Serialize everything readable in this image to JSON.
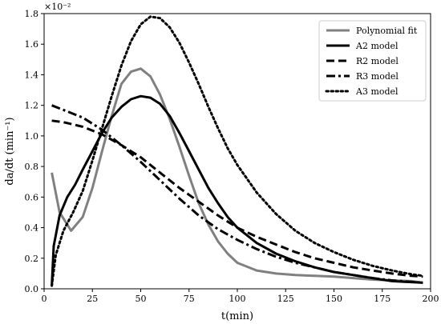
{
  "chart_data": {
    "type": "line",
    "xlabel": "t(min)",
    "ylabel": "da/dt (min⁻¹)",
    "scale_note": "×10⁻²",
    "xlim": [
      0,
      200
    ],
    "ylim": [
      0,
      1.8
    ],
    "x_ticks": [
      "0",
      "25",
      "50",
      "75",
      "100",
      "125",
      "150",
      "175",
      "200"
    ],
    "y_ticks": [
      "0.0",
      "0.2",
      "0.4",
      "0.6",
      "0.8",
      "1.0",
      "1.2",
      "1.4",
      "1.6",
      "1.8"
    ],
    "legend_position": "top-right",
    "grid": false,
    "series": [
      {
        "name": "Polynomial fit",
        "color": "#808080",
        "style": "solid",
        "points": [
          [
            4,
            0.76
          ],
          [
            8,
            0.5
          ],
          [
            14,
            0.38
          ],
          [
            20,
            0.47
          ],
          [
            25,
            0.66
          ],
          [
            30,
            0.9
          ],
          [
            35,
            1.13
          ],
          [
            40,
            1.34
          ],
          [
            45,
            1.42
          ],
          [
            50,
            1.44
          ],
          [
            55,
            1.39
          ],
          [
            60,
            1.27
          ],
          [
            65,
            1.11
          ],
          [
            70,
            0.93
          ],
          [
            75,
            0.74
          ],
          [
            80,
            0.56
          ],
          [
            85,
            0.42
          ],
          [
            90,
            0.31
          ],
          [
            95,
            0.23
          ],
          [
            100,
            0.17
          ],
          [
            110,
            0.12
          ],
          [
            120,
            0.1
          ],
          [
            130,
            0.09
          ],
          [
            140,
            0.085
          ],
          [
            150,
            0.08
          ],
          [
            160,
            0.07
          ],
          [
            170,
            0.06
          ],
          [
            180,
            0.055
          ],
          [
            190,
            0.05
          ],
          [
            196,
            0.04
          ]
        ]
      },
      {
        "name": "A2 model",
        "color": "#000000",
        "style": "solid",
        "points": [
          [
            4,
            0.02
          ],
          [
            5,
            0.28
          ],
          [
            8,
            0.48
          ],
          [
            12,
            0.6
          ],
          [
            16,
            0.68
          ],
          [
            20,
            0.78
          ],
          [
            25,
            0.9
          ],
          [
            30,
            1.02
          ],
          [
            35,
            1.12
          ],
          [
            40,
            1.19
          ],
          [
            45,
            1.24
          ],
          [
            50,
            1.26
          ],
          [
            55,
            1.25
          ],
          [
            60,
            1.21
          ],
          [
            65,
            1.13
          ],
          [
            70,
            1.02
          ],
          [
            75,
            0.9
          ],
          [
            80,
            0.78
          ],
          [
            85,
            0.66
          ],
          [
            90,
            0.56
          ],
          [
            95,
            0.47
          ],
          [
            100,
            0.4
          ],
          [
            110,
            0.3
          ],
          [
            120,
            0.23
          ],
          [
            130,
            0.18
          ],
          [
            140,
            0.14
          ],
          [
            150,
            0.11
          ],
          [
            160,
            0.09
          ],
          [
            170,
            0.07
          ],
          [
            180,
            0.05
          ],
          [
            196,
            0.04
          ]
        ]
      },
      {
        "name": "R2 model",
        "color": "#000000",
        "style": "dashed",
        "points": [
          [
            4,
            1.1
          ],
          [
            10,
            1.09
          ],
          [
            20,
            1.06
          ],
          [
            30,
            1.01
          ],
          [
            40,
            0.94
          ],
          [
            50,
            0.86
          ],
          [
            60,
            0.76
          ],
          [
            70,
            0.66
          ],
          [
            80,
            0.57
          ],
          [
            90,
            0.48
          ],
          [
            100,
            0.4
          ],
          [
            110,
            0.34
          ],
          [
            120,
            0.29
          ],
          [
            130,
            0.24
          ],
          [
            140,
            0.2
          ],
          [
            150,
            0.17
          ],
          [
            160,
            0.14
          ],
          [
            170,
            0.12
          ],
          [
            180,
            0.1
          ],
          [
            190,
            0.085
          ],
          [
            196,
            0.08
          ]
        ]
      },
      {
        "name": "R3 model",
        "color": "#000000",
        "style": "dashdot",
        "points": [
          [
            4,
            1.2
          ],
          [
            10,
            1.17
          ],
          [
            20,
            1.12
          ],
          [
            30,
            1.04
          ],
          [
            40,
            0.94
          ],
          [
            50,
            0.83
          ],
          [
            60,
            0.71
          ],
          [
            70,
            0.59
          ],
          [
            80,
            0.48
          ],
          [
            90,
            0.39
          ],
          [
            100,
            0.32
          ],
          [
            110,
            0.26
          ],
          [
            120,
            0.21
          ],
          [
            130,
            0.17
          ],
          [
            140,
            0.14
          ],
          [
            150,
            0.11
          ],
          [
            160,
            0.09
          ],
          [
            170,
            0.07
          ],
          [
            180,
            0.055
          ],
          [
            190,
            0.045
          ],
          [
            196,
            0.04
          ]
        ]
      },
      {
        "name": "A3 model",
        "color": "#000000",
        "style": "dotted",
        "points": [
          [
            4,
            0.02
          ],
          [
            6,
            0.22
          ],
          [
            10,
            0.38
          ],
          [
            15,
            0.5
          ],
          [
            20,
            0.64
          ],
          [
            25,
            0.84
          ],
          [
            30,
            1.05
          ],
          [
            35,
            1.26
          ],
          [
            40,
            1.46
          ],
          [
            45,
            1.62
          ],
          [
            50,
            1.73
          ],
          [
            55,
            1.78
          ],
          [
            60,
            1.77
          ],
          [
            65,
            1.71
          ],
          [
            70,
            1.61
          ],
          [
            75,
            1.48
          ],
          [
            80,
            1.34
          ],
          [
            85,
            1.19
          ],
          [
            90,
            1.05
          ],
          [
            95,
            0.92
          ],
          [
            100,
            0.81
          ],
          [
            110,
            0.63
          ],
          [
            120,
            0.49
          ],
          [
            130,
            0.38
          ],
          [
            140,
            0.3
          ],
          [
            150,
            0.24
          ],
          [
            160,
            0.19
          ],
          [
            170,
            0.15
          ],
          [
            180,
            0.12
          ],
          [
            190,
            0.095
          ],
          [
            196,
            0.085
          ]
        ]
      }
    ]
  }
}
